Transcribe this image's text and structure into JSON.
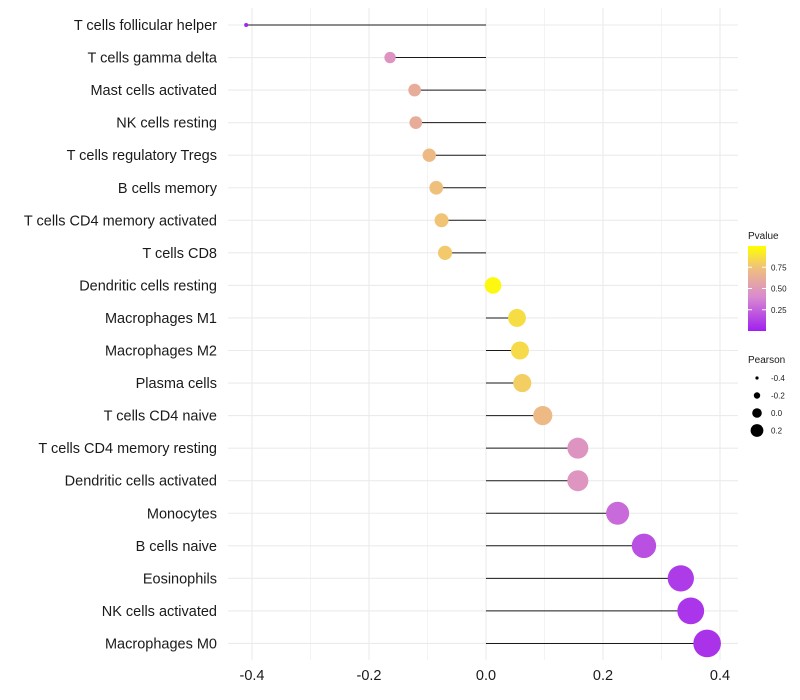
{
  "chart_data": {
    "type": "lollipop",
    "title": "",
    "xlabel": "",
    "ylabel": "",
    "xlim": [
      -0.44,
      0.4
    ],
    "xticks": [
      -0.4,
      -0.2,
      0.0,
      0.2,
      0.4
    ],
    "xtick_labels": [
      "-0.4",
      "-0.2",
      "0.0",
      "0.2",
      "0.4"
    ],
    "grid": true,
    "points": [
      {
        "label": "T cells follicular helper",
        "value": -0.41,
        "pvalue": 0.01
      },
      {
        "label": "T cells gamma delta",
        "value": -0.164,
        "pvalue": 0.46
      },
      {
        "label": "Mast cells activated",
        "value": -0.122,
        "pvalue": 0.62
      },
      {
        "label": "NK cells resting",
        "value": -0.12,
        "pvalue": 0.62
      },
      {
        "label": "T cells regulatory  Tregs ",
        "value": -0.097,
        "pvalue": 0.7
      },
      {
        "label": "B cells memory",
        "value": -0.085,
        "pvalue": 0.74
      },
      {
        "label": "T cells CD4 memory activated",
        "value": -0.076,
        "pvalue": 0.76
      },
      {
        "label": "T cells CD8",
        "value": -0.07,
        "pvalue": 0.78
      },
      {
        "label": "Dendritic cells resting",
        "value": 0.012,
        "pvalue": 0.97
      },
      {
        "label": "Macrophages M1",
        "value": 0.053,
        "pvalue": 0.86
      },
      {
        "label": "Macrophages M2",
        "value": 0.058,
        "pvalue": 0.85
      },
      {
        "label": "Plasma cells",
        "value": 0.062,
        "pvalue": 0.8
      },
      {
        "label": "T cells CD4 naive",
        "value": 0.097,
        "pvalue": 0.7
      },
      {
        "label": "T cells CD4 memory resting",
        "value": 0.157,
        "pvalue": 0.46
      },
      {
        "label": "Dendritic cells activated",
        "value": 0.157,
        "pvalue": 0.47
      },
      {
        "label": "Monocytes",
        "value": 0.225,
        "pvalue": 0.28
      },
      {
        "label": "B cells naive",
        "value": 0.27,
        "pvalue": 0.18
      },
      {
        "label": "Eosinophils",
        "value": 0.333,
        "pvalue": 0.1
      },
      {
        "label": "NK cells activated",
        "value": 0.35,
        "pvalue": 0.08
      },
      {
        "label": "Macrophages M0",
        "value": 0.378,
        "pvalue": 0.07
      }
    ],
    "color_legend": {
      "title": "Pvalue",
      "ticks": [
        0.25,
        0.5,
        0.75
      ],
      "tick_labels": [
        "0.25",
        "0.50",
        "0.75"
      ],
      "range": [
        0.0,
        1.0
      ],
      "colors": [
        "#a020f0",
        "#d98ad0",
        "#f0c27a",
        "#ffff00"
      ]
    },
    "size_legend": {
      "title": "Pearson",
      "values": [
        -0.4,
        -0.2,
        0.0,
        0.2
      ],
      "labels": [
        "-0.4",
        "-0.2",
        "0.0",
        "0.2"
      ]
    },
    "colors": {
      "stem": "#1a1a1a",
      "grid": "#ebebeb"
    }
  }
}
